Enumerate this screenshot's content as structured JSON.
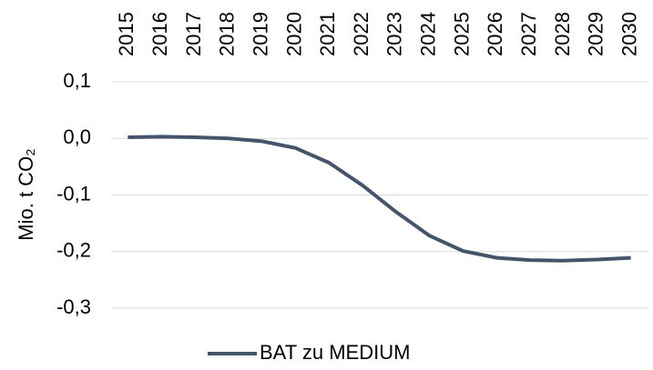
{
  "chart_data": {
    "type": "line",
    "y_axis_label": "Mio. t CO₂",
    "categories": [
      "2015",
      "2016",
      "2017",
      "2018",
      "2019",
      "2020",
      "2021",
      "2022",
      "2023",
      "2024",
      "2025",
      "2026",
      "2027",
      "2028",
      "2029",
      "2030"
    ],
    "series": [
      {
        "name": "BAT zu MEDIUM",
        "color": "#44546a",
        "values": [
          0.002,
          0.003,
          0.002,
          0.0,
          -0.005,
          -0.017,
          -0.043,
          -0.083,
          -0.13,
          -0.172,
          -0.199,
          -0.211,
          -0.215,
          -0.216,
          -0.214,
          -0.211
        ]
      }
    ],
    "ylim": [
      -0.3,
      0.1
    ],
    "yticks": [
      {
        "value": -0.3,
        "label": "-0,3"
      },
      {
        "value": -0.2,
        "label": "-0,2"
      },
      {
        "value": -0.1,
        "label": "-0,1"
      },
      {
        "value": 0,
        "label": "0,0"
      },
      {
        "value": 0.1,
        "label": "0,1"
      }
    ],
    "grid": true,
    "legend": "bottom"
  }
}
